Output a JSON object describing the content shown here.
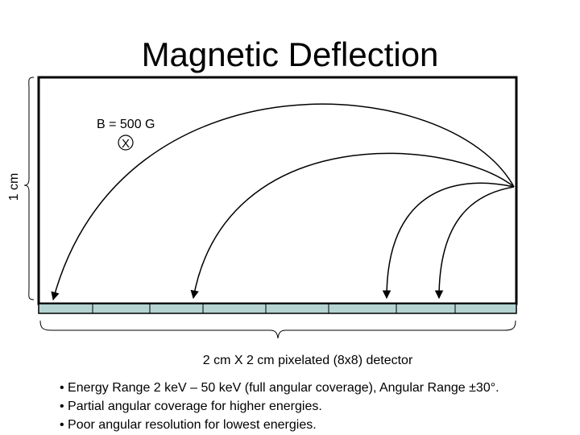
{
  "title": "Magnetic Deflection",
  "field_label": "B = 500 G",
  "field_symbol": "X",
  "height_label": "1 cm",
  "detector_label": "2 cm X 2 cm pixelated (8x8) detector",
  "bullets": [
    "• Energy Range 2 keV – 50 keV (full angular coverage), Angular Range ±30°.",
    "• Partial angular coverage for higher energies.",
    "• Poor angular resolution for lowest energies."
  ]
}
